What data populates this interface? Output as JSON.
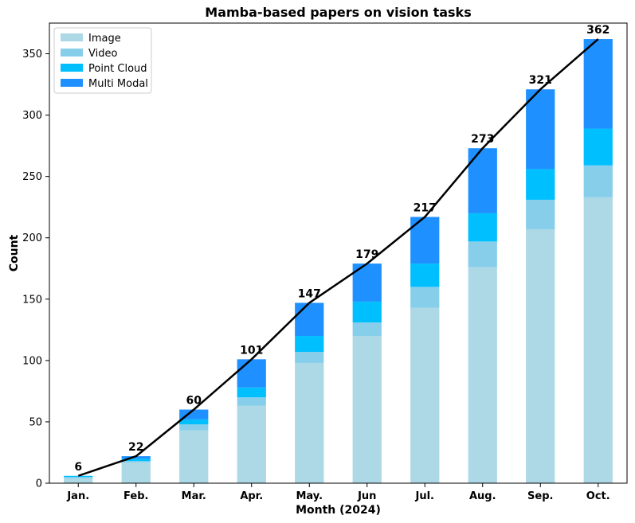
{
  "chart_data": {
    "type": "bar",
    "stacked": true,
    "title": "Mamba-based papers on vision tasks",
    "xlabel": "Month (2024)",
    "ylabel": "Count",
    "ylim": [
      0,
      375
    ],
    "yticks": [
      0,
      50,
      100,
      150,
      200,
      250,
      300,
      350
    ],
    "categories": [
      "Jan.",
      "Feb.",
      "Mar.",
      "Apr.",
      "May.",
      "Jun",
      "Jul.",
      "Aug.",
      "Sep.",
      "Oct."
    ],
    "series": [
      {
        "name": "Image",
        "color": "#add8e6",
        "values": [
          4,
          17,
          43,
          63,
          98,
          120,
          143,
          176,
          207,
          233
        ]
      },
      {
        "name": "Video",
        "color": "#87ceeb",
        "values": [
          1,
          1,
          5,
          7,
          9,
          11,
          17,
          21,
          24,
          26
        ]
      },
      {
        "name": "Point Cloud",
        "color": "#00bfff",
        "values": [
          1,
          2,
          4,
          8,
          13,
          17,
          19,
          23,
          25,
          30
        ]
      },
      {
        "name": "Multi Modal",
        "color": "#1e90ff",
        "values": [
          0,
          2,
          8,
          23,
          27,
          31,
          38,
          53,
          65,
          73
        ]
      }
    ],
    "totals": [
      6,
      22,
      60,
      101,
      147,
      179,
      217,
      273,
      321,
      362
    ],
    "trend_line": {
      "color": "#000000",
      "values": [
        6,
        22,
        60,
        101,
        147,
        179,
        217,
        273,
        321,
        362
      ]
    },
    "legend_position": "top-left",
    "grid": false
  }
}
